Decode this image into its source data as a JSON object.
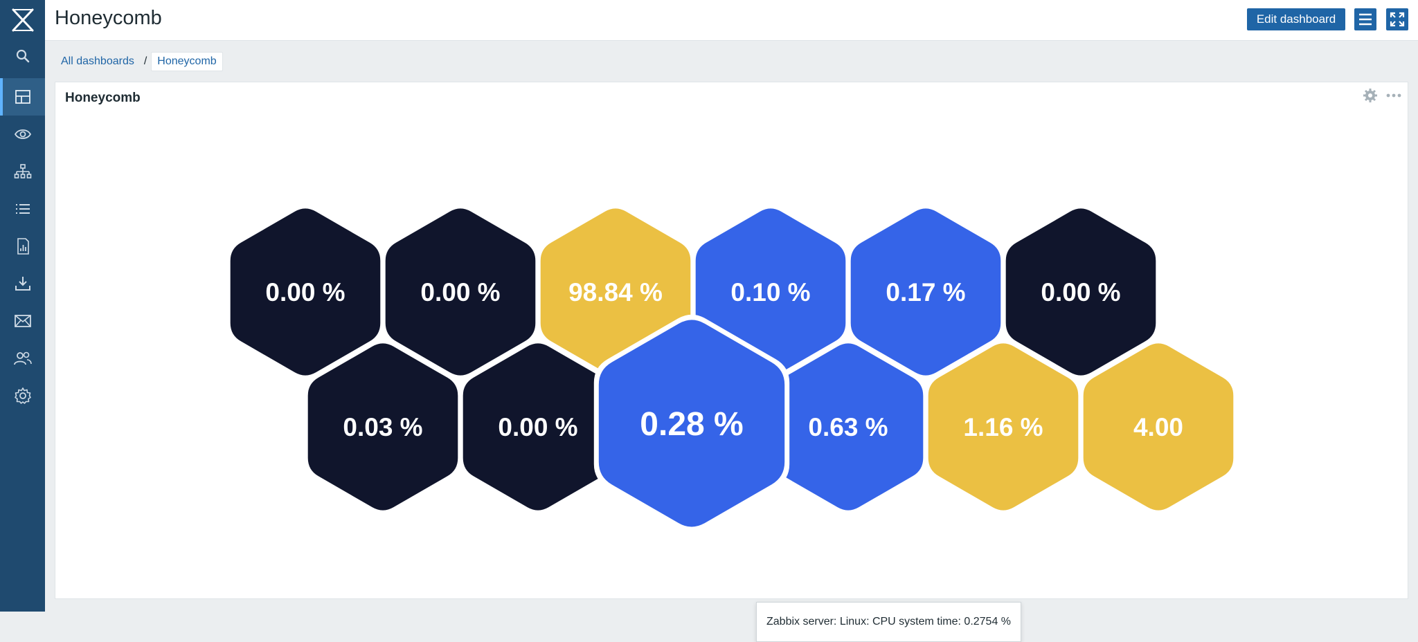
{
  "header": {
    "title": "Honeycomb",
    "edit_label": "Edit dashboard"
  },
  "sidebar": {
    "logo": "zabbix-logo",
    "items": [
      {
        "icon": "search-icon"
      },
      {
        "icon": "dashboard-icon",
        "active": true
      },
      {
        "icon": "eye-icon"
      },
      {
        "icon": "network-icon"
      },
      {
        "icon": "list-icon"
      },
      {
        "icon": "report-icon"
      },
      {
        "icon": "download-icon"
      },
      {
        "icon": "mail-icon"
      },
      {
        "icon": "users-icon"
      },
      {
        "icon": "gear-icon"
      }
    ]
  },
  "breadcrumb": {
    "parent": "All dashboards",
    "separator": "/",
    "current": "Honeycomb"
  },
  "widget": {
    "title": "Honeycomb",
    "cells": [
      {
        "label": "0.00 %",
        "color": "#10152c"
      },
      {
        "label": "0.00 %",
        "color": "#10152c"
      },
      {
        "label": "98.84 %",
        "color": "#ebc043"
      },
      {
        "label": "0.10 %",
        "color": "#3564e8"
      },
      {
        "label": "0.17 %",
        "color": "#3564e8"
      },
      {
        "label": "0.00 %",
        "color": "#10152c"
      },
      {
        "label": "0.03 %",
        "color": "#10152c"
      },
      {
        "label": "0.00 %",
        "color": "#10152c"
      },
      {
        "label": "0.63 %",
        "color": "#3564e8"
      },
      {
        "label": "1.16 %",
        "color": "#ebc043"
      },
      {
        "label": "4.00",
        "color": "#ebc043"
      },
      {
        "label": "0.28 %",
        "color": "#3564e8",
        "hovered": true
      }
    ],
    "tooltip": "Zabbix server: Linux: CPU system time: 0.2754 %"
  },
  "colors": {
    "sidebar": "#1f4a6f",
    "accent": "#1f65a6"
  }
}
